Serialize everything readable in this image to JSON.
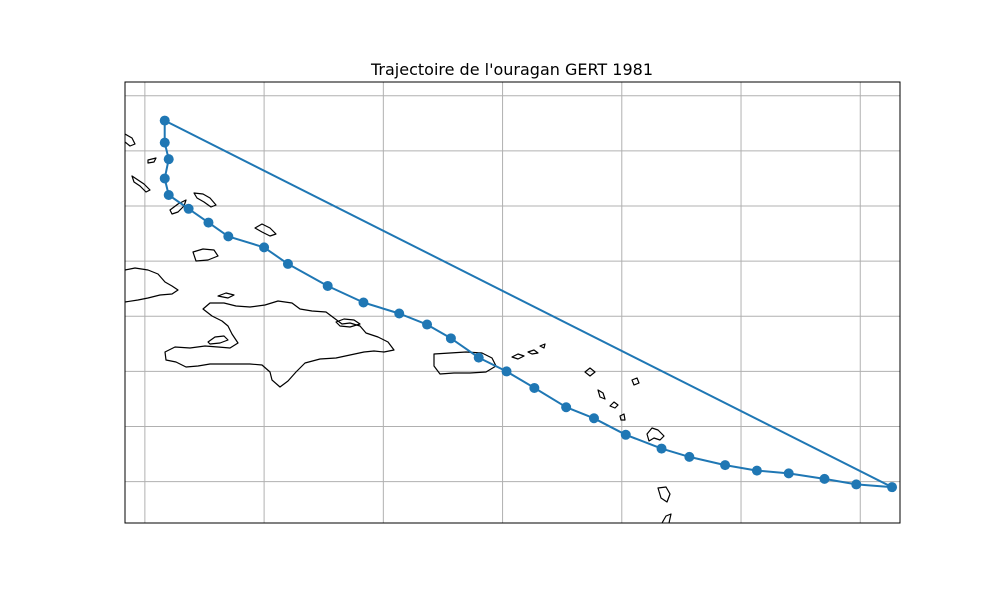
{
  "title": "Trajectoire de l'ouragan GERT 1981",
  "track_color": "#1f77b4",
  "grid_color": "#b0b0b0",
  "coastline_color": "#000000",
  "chart_data": {
    "type": "line",
    "title": "Trajectoire de l'ouragan GERT 1981",
    "xlabel": "",
    "ylabel": "",
    "grid": true,
    "legend": "none",
    "x_units": "degrees longitude",
    "y_units": "degrees latitude",
    "xlim": [
      -74.9,
      -55.4
    ],
    "ylim": [
      11.0,
      27.0
    ],
    "gridlines_x": [
      -74.4,
      -71.4,
      -68.4,
      -65.4,
      -62.4,
      -59.4,
      -56.4
    ],
    "gridlines_y": [
      12.5,
      14.5,
      16.5,
      18.5,
      20.5,
      22.5,
      24.5,
      26.5
    ],
    "series": [
      {
        "marker": "circle",
        "x": [
          -55.6,
          -56.5,
          -57.3,
          -58.2,
          -59.0,
          -59.8,
          -60.7,
          -61.4,
          -62.3,
          -63.1,
          -63.8,
          -64.6,
          -65.3,
          -66.0,
          -66.7,
          -67.3,
          -68.0,
          -68.9,
          -69.8,
          -70.8,
          -71.4,
          -72.3,
          -72.8,
          -73.3,
          -73.8,
          -73.9,
          -73.8,
          -73.9,
          -73.9
        ],
        "y": [
          12.3,
          12.4,
          12.6,
          12.8,
          12.9,
          13.1,
          13.4,
          13.7,
          14.2,
          14.8,
          15.2,
          15.9,
          16.5,
          17.0,
          17.7,
          18.2,
          18.6,
          19.0,
          19.6,
          20.4,
          21.0,
          21.4,
          21.9,
          22.4,
          22.9,
          23.5,
          24.2,
          24.8,
          25.6
        ]
      }
    ]
  }
}
